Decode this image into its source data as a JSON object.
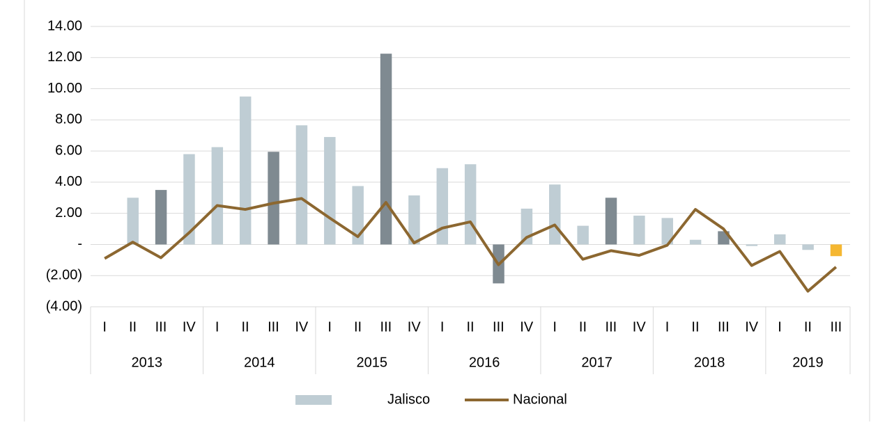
{
  "chart_data": {
    "type": "bar-line",
    "groups": [
      {
        "name": "2013",
        "categories": [
          "I",
          "II",
          "III",
          "IV"
        ]
      },
      {
        "name": "2014",
        "categories": [
          "I",
          "II",
          "III",
          "IV"
        ]
      },
      {
        "name": "2015",
        "categories": [
          "I",
          "II",
          "III",
          "IV"
        ]
      },
      {
        "name": "2016",
        "categories": [
          "I",
          "II",
          "III",
          "IV"
        ]
      },
      {
        "name": "2017",
        "categories": [
          "I",
          "II",
          "III",
          "IV"
        ]
      },
      {
        "name": "2018",
        "categories": [
          "I",
          "II",
          "III",
          "IV"
        ]
      },
      {
        "name": "2019",
        "categories": [
          "I",
          "II",
          "III"
        ]
      }
    ],
    "series": [
      {
        "name": "Jalisco",
        "kind": "bar",
        "color": "#bfcdd4",
        "colors": [
          "#bfcdd4",
          "#bfcdd4",
          "#7f8a91",
          "#bfcdd4",
          "#bfcdd4",
          "#bfcdd4",
          "#7f8a91",
          "#bfcdd4",
          "#bfcdd4",
          "#bfcdd4",
          "#7f8a91",
          "#bfcdd4",
          "#bfcdd4",
          "#bfcdd4",
          "#7f8a91",
          "#bfcdd4",
          "#bfcdd4",
          "#bfcdd4",
          "#7f8a91",
          "#bfcdd4",
          "#bfcdd4",
          "#bfcdd4",
          "#7f8a91",
          "#bfcdd4",
          "#bfcdd4",
          "#bfcdd4",
          "#f5b731"
        ],
        "values": [
          null,
          3.0,
          3.5,
          5.8,
          6.25,
          9.5,
          5.95,
          7.65,
          6.9,
          3.75,
          12.25,
          3.15,
          4.9,
          5.15,
          -2.5,
          2.3,
          3.85,
          1.2,
          3.0,
          1.85,
          1.7,
          0.3,
          0.85,
          -0.1,
          0.65,
          -0.35,
          -0.75
        ]
      },
      {
        "name": "Nacional",
        "kind": "line",
        "color": "#8c6730",
        "values": [
          -0.9,
          0.15,
          -0.85,
          0.75,
          2.5,
          2.25,
          2.65,
          2.95,
          1.7,
          0.5,
          2.7,
          0.1,
          1.05,
          1.45,
          -1.3,
          0.45,
          1.25,
          -0.95,
          -0.4,
          -0.7,
          -0.05,
          2.25,
          1.0,
          -1.35,
          -0.45,
          -3.0,
          -1.45
        ]
      }
    ],
    "ylim": [
      -4,
      14
    ],
    "yticks": [
      {
        "value": -4,
        "label": "(4.00)"
      },
      {
        "value": -2,
        "label": "(2.00)"
      },
      {
        "value": 0,
        "label": "-"
      },
      {
        "value": 2,
        "label": "2.00"
      },
      {
        "value": 4,
        "label": "4.00"
      },
      {
        "value": 6,
        "label": "6.00"
      },
      {
        "value": 8,
        "label": "8.00"
      },
      {
        "value": 10,
        "label": "10.00"
      },
      {
        "value": 12,
        "label": "12.00"
      },
      {
        "value": 14,
        "label": "14.00"
      }
    ],
    "grid": true,
    "legend": "bottom"
  }
}
